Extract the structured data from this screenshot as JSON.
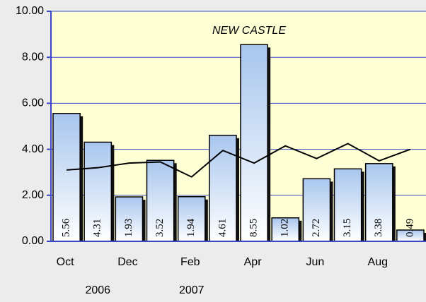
{
  "chart_data": {
    "type": "bar",
    "title": "NEW CASTLE",
    "categories": [
      "Oct",
      null,
      "Dec",
      null,
      "Feb",
      null,
      "Apr",
      null,
      "Jun",
      null,
      "Aug",
      null
    ],
    "group_labels": [
      "2006",
      "2007"
    ],
    "series": [
      {
        "type": "bar",
        "color": "#a8c6ee",
        "values": [
          5.56,
          4.31,
          1.93,
          3.52,
          1.94,
          4.61,
          8.55,
          1.02,
          2.72,
          3.15,
          3.38,
          0.49
        ]
      },
      {
        "type": "line",
        "color": "#000000",
        "values": [
          3.1,
          3.2,
          3.4,
          3.45,
          2.8,
          3.95,
          3.4,
          4.15,
          3.6,
          4.25,
          3.5,
          4.0
        ]
      }
    ],
    "ylim": [
      0,
      10
    ],
    "yticks": [
      {
        "value": 0,
        "label": "0.00"
      },
      {
        "value": 2,
        "label": "2.00"
      },
      {
        "value": 4,
        "label": "4.00"
      },
      {
        "value": 6,
        "label": "6.00"
      },
      {
        "value": 8,
        "label": "8.00"
      },
      {
        "value": 10,
        "label": "10.00"
      }
    ],
    "grid": true
  }
}
